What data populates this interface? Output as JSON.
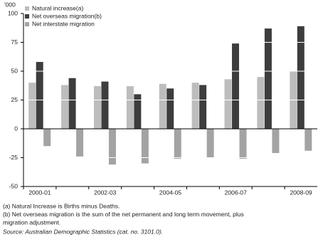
{
  "chart_data": {
    "type": "bar",
    "y_label": "'000",
    "categories": [
      "2000-01",
      null,
      "2002-03",
      null,
      "2004-05",
      null,
      "2006-07",
      null,
      "2008-09"
    ],
    "series": [
      {
        "name": "Natural increase(a)",
        "color": "#bdbdbd",
        "values": [
          40,
          38,
          37,
          37,
          39,
          40,
          43,
          45,
          50
        ]
      },
      {
        "name": "Net overseas migration(b)",
        "color": "#3d3d3d",
        "values": [
          58,
          44,
          41,
          30,
          35,
          38,
          74,
          87,
          89
        ]
      },
      {
        "name": "Net interstate migration",
        "color": "#a3a3a3",
        "values": [
          -15,
          -24,
          -31,
          -30,
          -26,
          -25,
          -26,
          -21,
          -19
        ]
      }
    ],
    "ylim": [
      -50,
      100
    ],
    "yticks": [
      -50,
      -25,
      0,
      25,
      50,
      75,
      100
    ],
    "grid": true,
    "legend": "top-left",
    "notes": [
      "(a) Natural Increase is Births minus Deaths.",
      "(b) Net overseas migration is the sum of the net permanent and long term movement, plus",
      "migration adjustment."
    ],
    "source": "Source: Australian Demographic Statistics (cat. no. 3101.0)."
  }
}
